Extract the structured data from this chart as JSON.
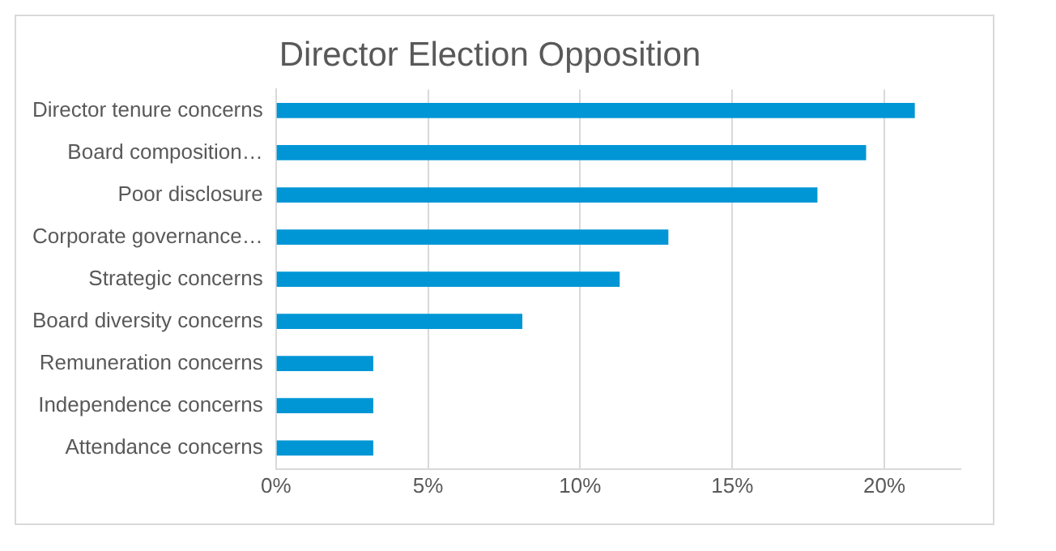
{
  "chart_data": {
    "type": "bar",
    "orientation": "horizontal",
    "title": "Director Election Opposition",
    "categories": [
      "Director tenure concerns",
      "Board composition…",
      "Poor disclosure",
      "Corporate governance…",
      "Strategic concerns",
      "Board diversity concerns",
      "Remuneration concerns",
      "Independence concerns",
      "Attendance concerns"
    ],
    "values": [
      21.0,
      19.4,
      17.8,
      12.9,
      11.3,
      8.1,
      3.2,
      3.2,
      3.2
    ],
    "color": "#0096d6",
    "xlim": [
      0,
      22.5
    ],
    "xticks": [
      {
        "value": 0,
        "label": "0%"
      },
      {
        "value": 5,
        "label": "5%"
      },
      {
        "value": 10,
        "label": "10%"
      },
      {
        "value": 15,
        "label": "15%"
      },
      {
        "value": 20,
        "label": "20%"
      }
    ],
    "grid": "x",
    "legend": false
  }
}
